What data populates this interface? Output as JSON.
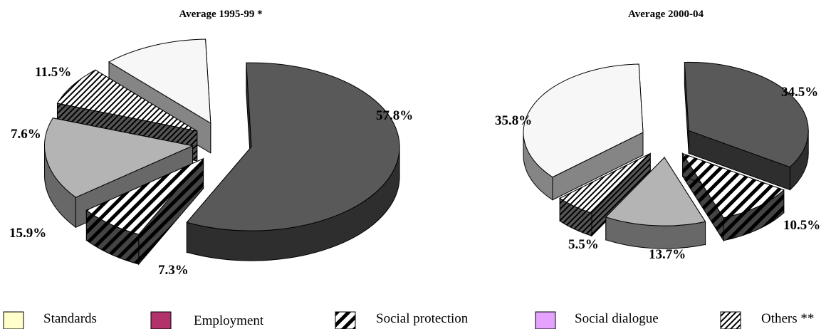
{
  "chart_data": [
    {
      "type": "pie",
      "title": "Average 1995-99 *",
      "slices": [
        {
          "category": "Employment",
          "value": 57.8,
          "label": "57.8%"
        },
        {
          "category": "Social protection",
          "value": 7.3,
          "label": "7.3%"
        },
        {
          "category": "Social dialogue",
          "value": 15.9,
          "label": "15.9%"
        },
        {
          "category": "Others **",
          "value": 7.6,
          "label": "7.6%"
        },
        {
          "category": "Standards",
          "value": 11.5,
          "label": "11.5%"
        }
      ]
    },
    {
      "type": "pie",
      "title": "Average 2000-04",
      "slices": [
        {
          "category": "Employment",
          "value": 34.5,
          "label": "34.5%"
        },
        {
          "category": "Social protection",
          "value": 10.5,
          "label": "10.5%"
        },
        {
          "category": "Social dialogue",
          "value": 13.7,
          "label": "13.7%"
        },
        {
          "category": "Others **",
          "value": 5.5,
          "label": "5.5%"
        },
        {
          "category": "Standards",
          "value": 35.8,
          "label": "35.8%"
        }
      ]
    }
  ],
  "legend": [
    {
      "label": "Standards",
      "color": "#ffffcc",
      "pattern": "none"
    },
    {
      "label": "Employment",
      "color": "#b2336b",
      "pattern": "none"
    },
    {
      "label": "Social protection",
      "color": "#ffffff",
      "pattern": "wide-diagonal"
    },
    {
      "label": "Social dialogue",
      "color": "#e5a3ff",
      "pattern": "none"
    },
    {
      "label": "Others **",
      "color": "#ffffff",
      "pattern": "fine-diagonal"
    }
  ],
  "chart_colors": {
    "Standards": {
      "top": "#f7f7f7",
      "side": "#858585"
    },
    "Employment": {
      "top": "#595959",
      "side": "#2e2e2e"
    },
    "Social protection": {
      "top": "pattern",
      "side": "#555555"
    },
    "Social dialogue": {
      "top": "#b4b4b4",
      "side": "#686868"
    },
    "Others **": {
      "top": "pattern",
      "side": "#555555"
    }
  }
}
